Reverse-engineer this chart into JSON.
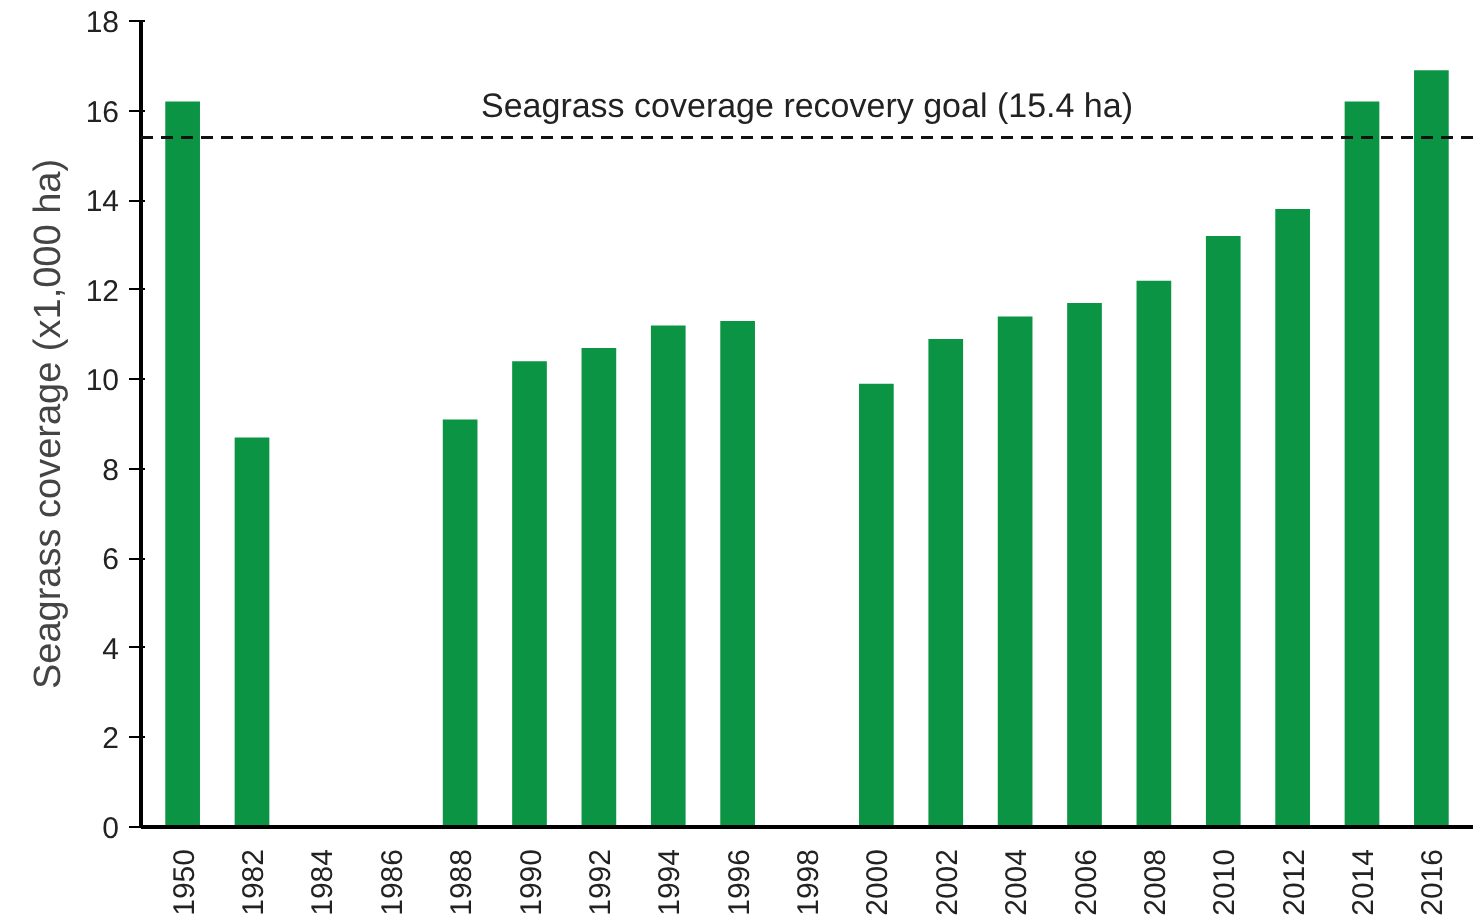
{
  "chart_data": {
    "type": "bar",
    "ylabel": "Seagrass coverage (x1,000 ha)",
    "categories": [
      "1950",
      "1982",
      "1984",
      "1986",
      "1988",
      "1990",
      "1992",
      "1994",
      "1996",
      "1998",
      "2000",
      "2002",
      "2004",
      "2006",
      "2008",
      "2010",
      "2012",
      "2014",
      "2016"
    ],
    "values": [
      16.2,
      8.7,
      null,
      null,
      9.1,
      10.4,
      10.7,
      11.2,
      11.3,
      null,
      9.9,
      10.9,
      11.4,
      11.7,
      12.2,
      13.2,
      13.8,
      16.2,
      16.9
    ],
    "color": "#0a9444",
    "ylim": [
      0,
      18
    ],
    "yticks": [
      0,
      2,
      4,
      6,
      8,
      10,
      12,
      14,
      16,
      18
    ],
    "grid": false,
    "ref_lines": [
      {
        "axis": "y",
        "value": 15.4,
        "label": "Seagrass coverage recovery goal (15.4 ha)",
        "color": "#111111",
        "line_style": "dashed"
      }
    ]
  }
}
